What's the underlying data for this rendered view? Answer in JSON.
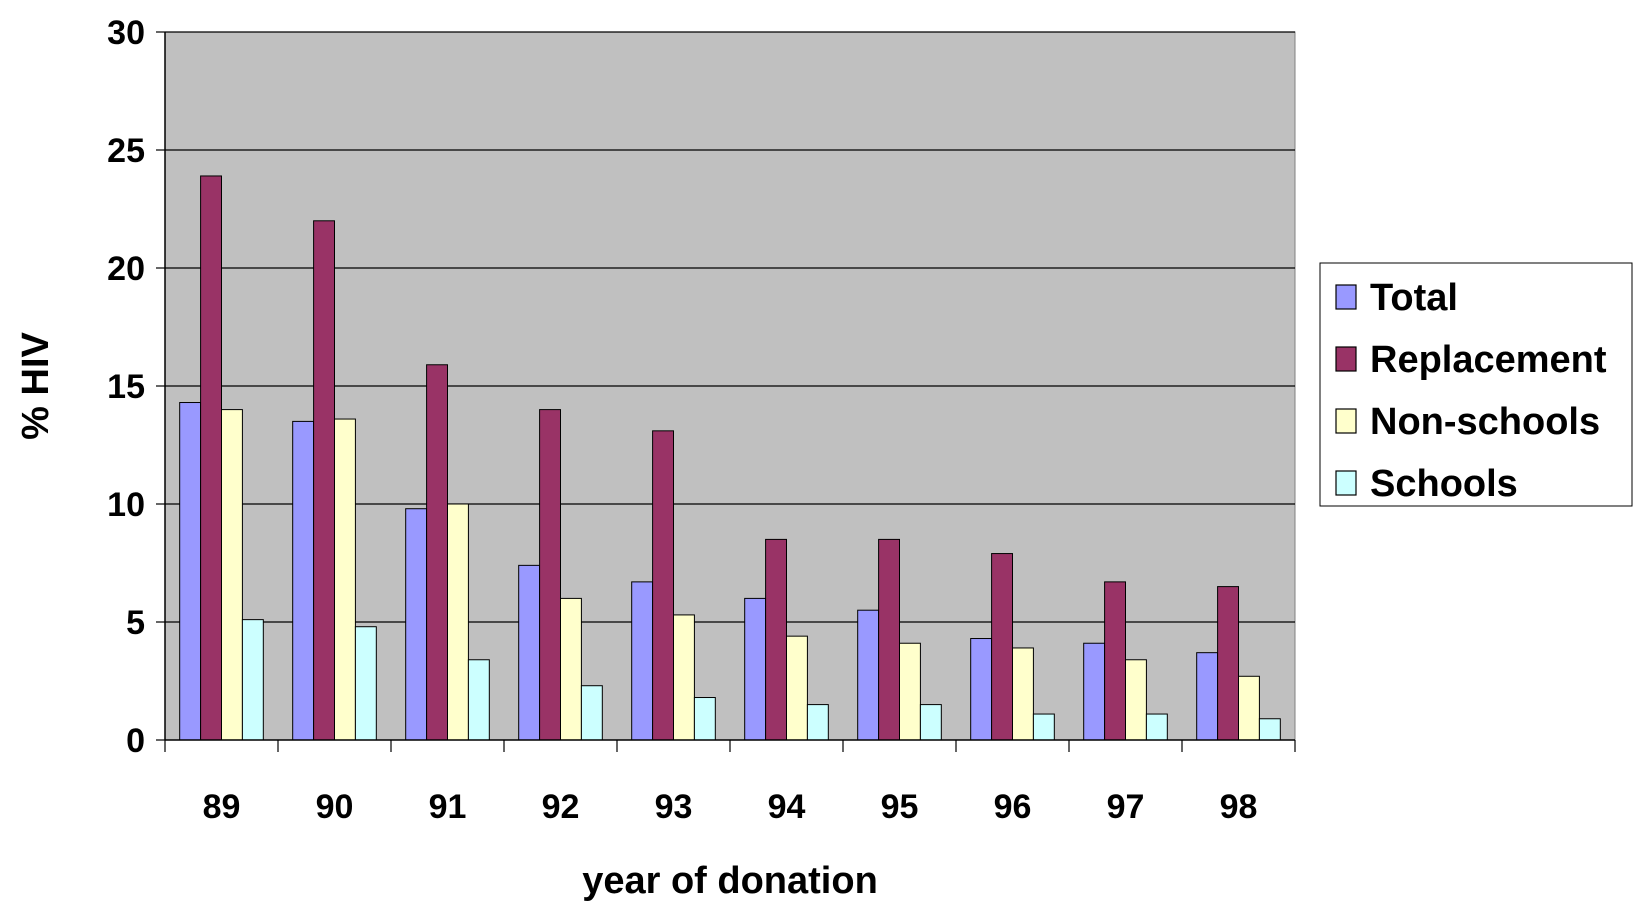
{
  "chart_data": {
    "type": "bar",
    "title": "",
    "xlabel": "year of donation",
    "ylabel": "% HIV",
    "categories": [
      "89",
      "90",
      "91",
      "92",
      "93",
      "94",
      "95",
      "96",
      "97",
      "98"
    ],
    "ylim": [
      0,
      30
    ],
    "yticks": [
      "0",
      "5",
      "10",
      "15",
      "20",
      "25",
      "30"
    ],
    "grid": true,
    "legend_position": "right",
    "plot_background": "#c0c0c0",
    "series": [
      {
        "name": "Total",
        "color": "#9999ff",
        "values": [
          14.3,
          13.5,
          9.8,
          7.4,
          6.7,
          6.0,
          5.5,
          4.3,
          4.1,
          3.7
        ]
      },
      {
        "name": "Replacement",
        "color": "#993366",
        "values": [
          23.9,
          22.0,
          15.9,
          14.0,
          13.1,
          8.5,
          8.5,
          7.9,
          6.7,
          6.5
        ]
      },
      {
        "name": "Non-schools",
        "color": "#ffffcc",
        "values": [
          14.0,
          13.6,
          10.0,
          6.0,
          5.3,
          4.4,
          4.1,
          3.9,
          3.4,
          2.7
        ]
      },
      {
        "name": "Schools",
        "color": "#ccffff",
        "values": [
          5.1,
          4.8,
          3.4,
          2.3,
          1.8,
          1.5,
          1.5,
          1.1,
          1.1,
          0.9
        ]
      }
    ]
  }
}
